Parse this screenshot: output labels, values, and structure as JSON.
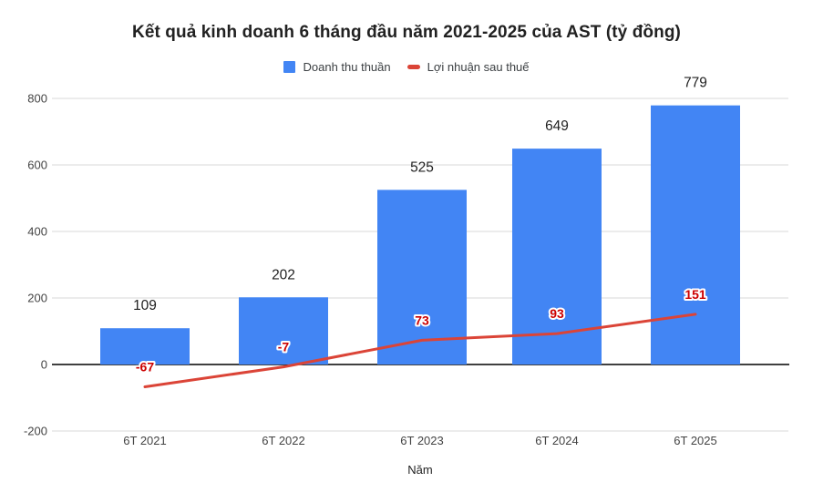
{
  "colors": {
    "bar": "#4285f4",
    "line": "#db4437",
    "bar_label": "#212121",
    "line_label": "#cc0000",
    "line_label_halo": "#ffffff",
    "grid": "#d9d9d9",
    "zero_line": "#000000",
    "tick_label": "#444444",
    "axis_title": "#222222"
  },
  "chart_data": {
    "type": "bar",
    "title": "Kết quả kinh doanh 6 tháng đầu năm 2021-2025 của AST (tỷ đồng)",
    "categories": [
      "6T 2021",
      "6T 2022",
      "6T 2023",
      "6T 2024",
      "6T 2025"
    ],
    "series": [
      {
        "name": "Doanh thu thuần",
        "type": "bar",
        "color": "#4285f4",
        "values": [
          109,
          202,
          525,
          649,
          779
        ]
      },
      {
        "name": "Lợi nhuận sau thuế",
        "type": "line",
        "color": "#db4437",
        "values": [
          -67,
          -7,
          73,
          93,
          151
        ]
      }
    ],
    "xlabel": "Năm",
    "ylabel": "",
    "ylim": [
      -200,
      800
    ],
    "yticks": [
      800,
      600,
      400,
      200,
      0,
      -200
    ],
    "grid": true,
    "legend_position": "top",
    "annotations": "values shown above bars in black and above line points in red"
  }
}
